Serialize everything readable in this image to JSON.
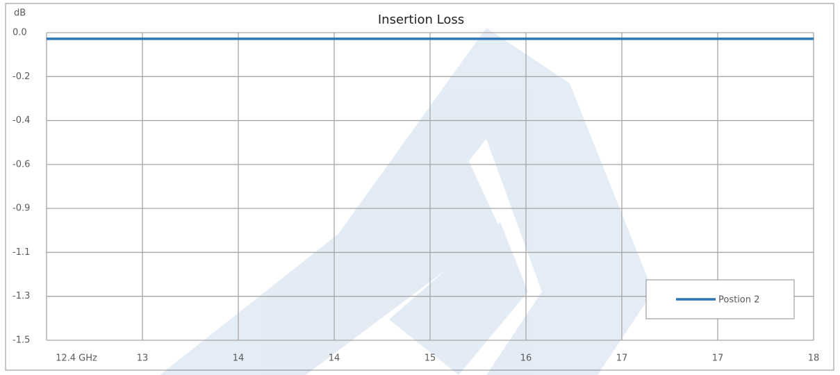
{
  "chart_data": {
    "type": "line",
    "title": "Insertion Loss",
    "y_label": "dB",
    "x": [
      12.4,
      13.1,
      13.8,
      14.5,
      15.2,
      15.9,
      16.6,
      17.3,
      18
    ],
    "series": [
      {
        "name": "Postion 2",
        "color": "#2e75b6",
        "values": [
          -0.03,
          -0.03,
          -0.03,
          -0.03,
          -0.03,
          -0.03,
          -0.03,
          -0.03,
          -0.03
        ]
      }
    ],
    "xlim": [
      12.4,
      18
    ],
    "xticks": [
      {
        "value": 12.4,
        "label": "12.4 GHz"
      },
      {
        "value": 13.1,
        "label": "13"
      },
      {
        "value": 13.8,
        "label": "14"
      },
      {
        "value": 14.5,
        "label": "14"
      },
      {
        "value": 15.2,
        "label": "15"
      },
      {
        "value": 15.9,
        "label": "16"
      },
      {
        "value": 16.6,
        "label": "17"
      },
      {
        "value": 17.3,
        "label": "17"
      },
      18
    ],
    "ylim": [
      -1.5,
      0
    ],
    "yticks": [
      {
        "value": 0,
        "label": "0.0"
      },
      {
        "value": -0.2143,
        "label": "-0.2"
      },
      {
        "value": -0.4286,
        "label": "-0.4"
      },
      {
        "value": -0.6429,
        "label": "-0.6"
      },
      {
        "value": -0.8571,
        "label": "-0.9"
      },
      {
        "value": -1.0714,
        "label": "-1.1"
      },
      {
        "value": -1.2857,
        "label": "-1.3"
      },
      {
        "value": -1.5,
        "label": "-1.5"
      }
    ],
    "grid": true,
    "legend": "lower right"
  }
}
